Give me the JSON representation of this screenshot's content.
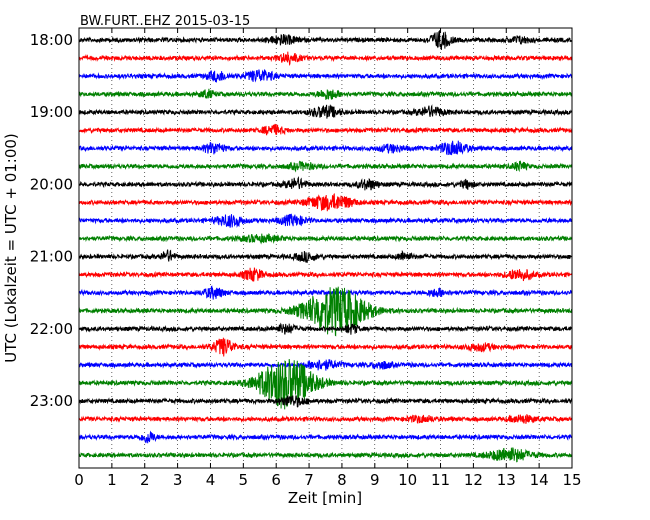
{
  "chart_data": {
    "type": "line",
    "title": "BW.FURT..EHZ 2015-03-15",
    "xlabel": "Zeit  [min]",
    "ylabel": "UTC (Lokalzeit = UTC + 01:00)",
    "xlim": [
      0,
      15
    ],
    "x_ticks": [
      "0",
      "1",
      "2",
      "3",
      "4",
      "5",
      "6",
      "7",
      "8",
      "9",
      "10",
      "11",
      "12",
      "13",
      "14",
      "15"
    ],
    "y_tick_labels": [
      "18:00",
      "19:00",
      "20:00",
      "21:00",
      "22:00",
      "23:00"
    ],
    "grid": "vertical dotted",
    "trace_colors": [
      "#000000",
      "#ff0000",
      "#0000ff",
      "#008000"
    ],
    "trace_interval_min": 15,
    "traces": [
      {
        "start": "18:00",
        "events": [
          {
            "t": 6.2,
            "amp": 0.45,
            "w": 0.4
          },
          {
            "t": 11.0,
            "amp": 0.9,
            "w": 0.3
          },
          {
            "t": 13.4,
            "amp": 0.35,
            "w": 0.3
          }
        ]
      },
      {
        "start": "18:15",
        "events": [
          {
            "t": 6.4,
            "amp": 0.55,
            "w": 0.3
          }
        ]
      },
      {
        "start": "18:30",
        "events": [
          {
            "t": 4.2,
            "amp": 0.5,
            "w": 0.3
          },
          {
            "t": 5.5,
            "amp": 0.6,
            "w": 0.4
          }
        ]
      },
      {
        "start": "18:45",
        "events": [
          {
            "t": 3.9,
            "amp": 0.4,
            "w": 0.2
          },
          {
            "t": 7.6,
            "amp": 0.5,
            "w": 0.3
          }
        ]
      },
      {
        "start": "19:00",
        "events": [
          {
            "t": 7.5,
            "amp": 0.6,
            "w": 0.4
          },
          {
            "t": 10.7,
            "amp": 0.5,
            "w": 0.4
          }
        ]
      },
      {
        "start": "19:15",
        "events": [
          {
            "t": 5.9,
            "amp": 0.5,
            "w": 0.3
          }
        ]
      },
      {
        "start": "19:30",
        "events": [
          {
            "t": 4.1,
            "amp": 0.55,
            "w": 0.3
          },
          {
            "t": 9.5,
            "amp": 0.35,
            "w": 0.4
          },
          {
            "t": 11.4,
            "amp": 0.7,
            "w": 0.4
          }
        ]
      },
      {
        "start": "19:45",
        "events": [
          {
            "t": 6.8,
            "amp": 0.35,
            "w": 0.4
          },
          {
            "t": 13.4,
            "amp": 0.45,
            "w": 0.2
          }
        ]
      },
      {
        "start": "20:00",
        "events": [
          {
            "t": 6.6,
            "amp": 0.55,
            "w": 0.3
          },
          {
            "t": 8.8,
            "amp": 0.5,
            "w": 0.3
          },
          {
            "t": 11.8,
            "amp": 0.4,
            "w": 0.2
          }
        ]
      },
      {
        "start": "20:15",
        "events": [
          {
            "t": 7.4,
            "amp": 0.65,
            "w": 0.5
          },
          {
            "t": 8.0,
            "amp": 0.5,
            "w": 0.4
          }
        ]
      },
      {
        "start": "20:30",
        "events": [
          {
            "t": 4.6,
            "amp": 0.6,
            "w": 0.4
          },
          {
            "t": 6.5,
            "amp": 0.5,
            "w": 0.4
          }
        ]
      },
      {
        "start": "20:45",
        "events": [
          {
            "t": 5.5,
            "amp": 0.3,
            "w": 0.6
          }
        ]
      },
      {
        "start": "21:00",
        "events": [
          {
            "t": 2.7,
            "amp": 0.55,
            "w": 0.2
          },
          {
            "t": 6.9,
            "amp": 0.45,
            "w": 0.3
          },
          {
            "t": 9.9,
            "amp": 0.45,
            "w": 0.2
          }
        ]
      },
      {
        "start": "21:15",
        "events": [
          {
            "t": 5.3,
            "amp": 0.6,
            "w": 0.3
          },
          {
            "t": 13.4,
            "amp": 0.55,
            "w": 0.4
          }
        ]
      },
      {
        "start": "21:30",
        "events": [
          {
            "t": 4.1,
            "amp": 0.55,
            "w": 0.3
          },
          {
            "t": 10.9,
            "amp": 0.35,
            "w": 0.3
          }
        ]
      },
      {
        "start": "21:45",
        "events": [
          {
            "t": 7.8,
            "amp": 2.6,
            "w": 0.9
          }
        ]
      },
      {
        "start": "22:00",
        "events": [
          {
            "t": 6.3,
            "amp": 0.45,
            "w": 0.3
          },
          {
            "t": 8.3,
            "amp": 0.45,
            "w": 0.2
          }
        ]
      },
      {
        "start": "22:15",
        "events": [
          {
            "t": 4.4,
            "amp": 0.9,
            "w": 0.3
          },
          {
            "t": 12.2,
            "amp": 0.35,
            "w": 0.4
          }
        ]
      },
      {
        "start": "22:30",
        "events": [
          {
            "t": 7.4,
            "amp": 0.45,
            "w": 0.5
          },
          {
            "t": 9.2,
            "amp": 0.35,
            "w": 0.3
          }
        ]
      },
      {
        "start": "22:45",
        "events": [
          {
            "t": 6.3,
            "amp": 2.8,
            "w": 0.8
          }
        ]
      },
      {
        "start": "23:00",
        "events": [
          {
            "t": 6.5,
            "amp": 0.5,
            "w": 0.4
          }
        ]
      },
      {
        "start": "23:15",
        "events": [
          {
            "t": 10.4,
            "amp": 0.3,
            "w": 0.4
          },
          {
            "t": 13.5,
            "amp": 0.35,
            "w": 0.4
          }
        ]
      },
      {
        "start": "23:30",
        "events": [
          {
            "t": 2.1,
            "amp": 0.6,
            "w": 0.2
          }
        ]
      },
      {
        "start": "23:45",
        "events": [
          {
            "t": 13.1,
            "amp": 0.7,
            "w": 0.6
          }
        ]
      }
    ]
  }
}
